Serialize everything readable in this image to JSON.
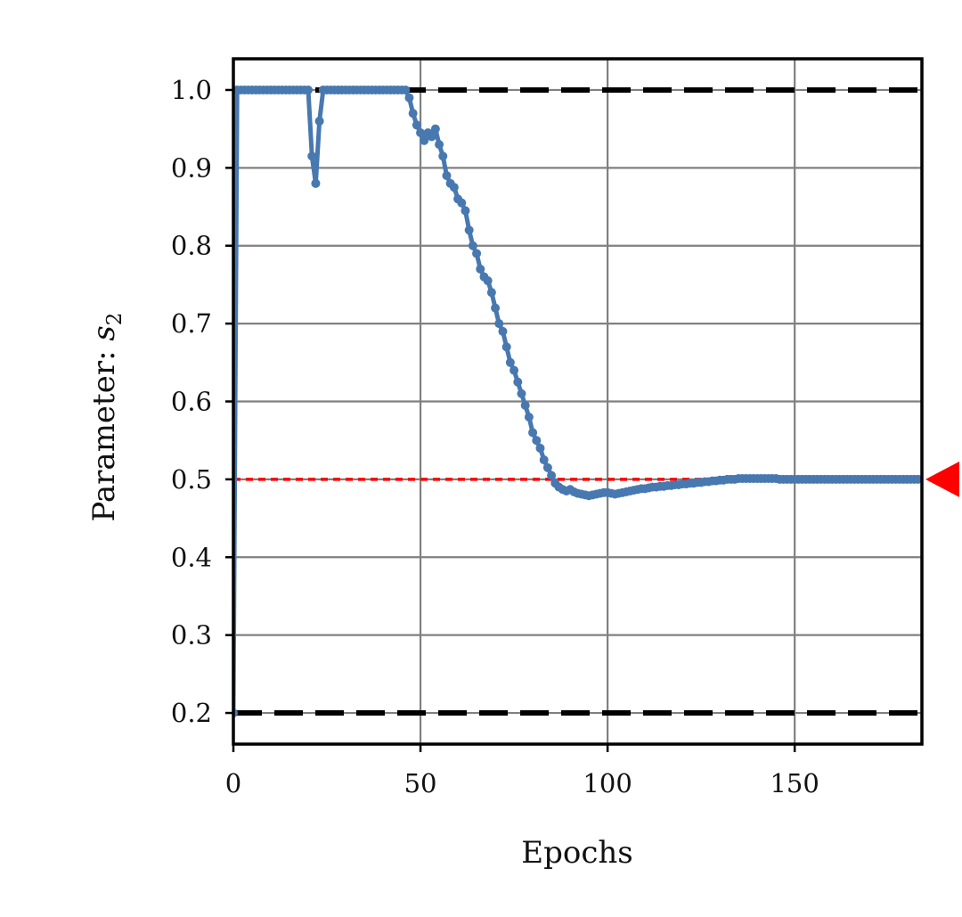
{
  "chart_data": {
    "type": "line",
    "title": "",
    "xlabel": "Epochs",
    "ylabel_text": "Parameter: ",
    "ylabel_symbol": "s",
    "ylabel_subscript": "2",
    "xlim": [
      0,
      184
    ],
    "ylim": [
      0.16,
      1.04
    ],
    "x_ticks": [
      {
        "value": 0,
        "label": "0"
      },
      {
        "value": 50,
        "label": "50"
      },
      {
        "value": 100,
        "label": "100"
      },
      {
        "value": 150,
        "label": "150"
      }
    ],
    "y_ticks": [
      {
        "value": 0.2,
        "label": "0.2"
      },
      {
        "value": 0.3,
        "label": "0.3"
      },
      {
        "value": 0.4,
        "label": "0.4"
      },
      {
        "value": 0.5,
        "label": "0.5"
      },
      {
        "value": 0.6,
        "label": "0.6"
      },
      {
        "value": 0.7,
        "label": "0.7"
      },
      {
        "value": 0.8,
        "label": "0.8"
      },
      {
        "value": 0.9,
        "label": "0.9"
      },
      {
        "value": 1.0,
        "label": "1.0"
      }
    ],
    "grid": true,
    "bounds": [
      {
        "value": 1.0,
        "style": "dashed",
        "color": "#000000"
      },
      {
        "value": 0.2,
        "style": "dashed",
        "color": "#000000"
      }
    ],
    "target": {
      "value": 0.5,
      "style": "dotted",
      "color": "#ff0000",
      "marker": "left-triangle"
    },
    "series": [
      {
        "color": "#4878b0",
        "x": [
          0,
          1,
          2,
          3,
          4,
          5,
          6,
          7,
          8,
          9,
          10,
          11,
          12,
          13,
          14,
          15,
          16,
          17,
          18,
          19,
          20,
          21,
          22,
          23,
          24,
          25,
          26,
          27,
          28,
          29,
          30,
          31,
          32,
          33,
          34,
          35,
          36,
          37,
          38,
          39,
          40,
          41,
          42,
          43,
          44,
          45,
          46,
          47,
          48,
          49,
          50,
          51,
          52,
          53,
          54,
          55,
          56,
          57,
          58,
          59,
          60,
          61,
          62,
          63,
          64,
          65,
          66,
          67,
          68,
          69,
          70,
          71,
          72,
          73,
          74,
          75,
          76,
          77,
          78,
          79,
          80,
          81,
          82,
          83,
          84,
          85,
          86,
          87,
          88,
          89,
          90,
          91,
          92,
          93,
          94,
          95,
          96,
          97,
          98,
          99,
          100,
          101,
          102,
          103,
          104,
          105,
          106,
          107,
          108,
          109,
          110,
          111,
          112,
          113,
          114,
          115,
          116,
          117,
          118,
          119,
          120,
          121,
          122,
          123,
          124,
          125,
          126,
          127,
          128,
          129,
          130,
          131,
          132,
          133,
          134,
          135,
          136,
          137,
          138,
          139,
          140,
          141,
          142,
          143,
          144,
          145,
          146,
          147,
          148,
          149,
          150,
          151,
          152,
          153,
          154,
          155,
          156,
          157,
          158,
          159,
          160,
          161,
          162,
          163,
          164,
          165,
          166,
          167,
          168,
          169,
          170,
          171,
          172,
          173,
          174,
          175,
          176,
          177,
          178,
          179,
          180,
          181,
          182,
          183
        ],
        "y": [
          0.2,
          1.0,
          1.0,
          1.0,
          1.0,
          1.0,
          1.0,
          1.0,
          1.0,
          1.0,
          1.0,
          1.0,
          1.0,
          1.0,
          1.0,
          1.0,
          1.0,
          1.0,
          1.0,
          1.0,
          1.0,
          0.915,
          0.88,
          0.96,
          1.0,
          1.0,
          1.0,
          1.0,
          1.0,
          1.0,
          1.0,
          1.0,
          1.0,
          1.0,
          1.0,
          1.0,
          1.0,
          1.0,
          1.0,
          1.0,
          1.0,
          1.0,
          1.0,
          1.0,
          1.0,
          1.0,
          1.0,
          0.99,
          0.97,
          0.955,
          0.945,
          0.935,
          0.945,
          0.94,
          0.95,
          0.93,
          0.915,
          0.89,
          0.88,
          0.875,
          0.86,
          0.855,
          0.845,
          0.82,
          0.8,
          0.79,
          0.77,
          0.76,
          0.755,
          0.74,
          0.72,
          0.7,
          0.69,
          0.67,
          0.65,
          0.64,
          0.625,
          0.61,
          0.595,
          0.58,
          0.56,
          0.55,
          0.54,
          0.525,
          0.515,
          0.505,
          0.495,
          0.49,
          0.487,
          0.485,
          0.487,
          0.484,
          0.482,
          0.481,
          0.48,
          0.479,
          0.48,
          0.481,
          0.482,
          0.483,
          0.483,
          0.482,
          0.481,
          0.482,
          0.483,
          0.484,
          0.485,
          0.486,
          0.487,
          0.488,
          0.488,
          0.489,
          0.49,
          0.49,
          0.491,
          0.491,
          0.492,
          0.492,
          0.493,
          0.493,
          0.494,
          0.494,
          0.495,
          0.495,
          0.496,
          0.496,
          0.497,
          0.497,
          0.498,
          0.498,
          0.499,
          0.499,
          0.5,
          0.5,
          0.5,
          0.501,
          0.501,
          0.501,
          0.501,
          0.501,
          0.501,
          0.501,
          0.501,
          0.501,
          0.501,
          0.501,
          0.5,
          0.5,
          0.5,
          0.5,
          0.5,
          0.5,
          0.5,
          0.5,
          0.5,
          0.5,
          0.5,
          0.5,
          0.5,
          0.5,
          0.5,
          0.5,
          0.5,
          0.5,
          0.5,
          0.5,
          0.5,
          0.5,
          0.5,
          0.5,
          0.5,
          0.5,
          0.5,
          0.5,
          0.5,
          0.5,
          0.5,
          0.5,
          0.5,
          0.5,
          0.5,
          0.5,
          0.5,
          0.5
        ]
      }
    ]
  }
}
